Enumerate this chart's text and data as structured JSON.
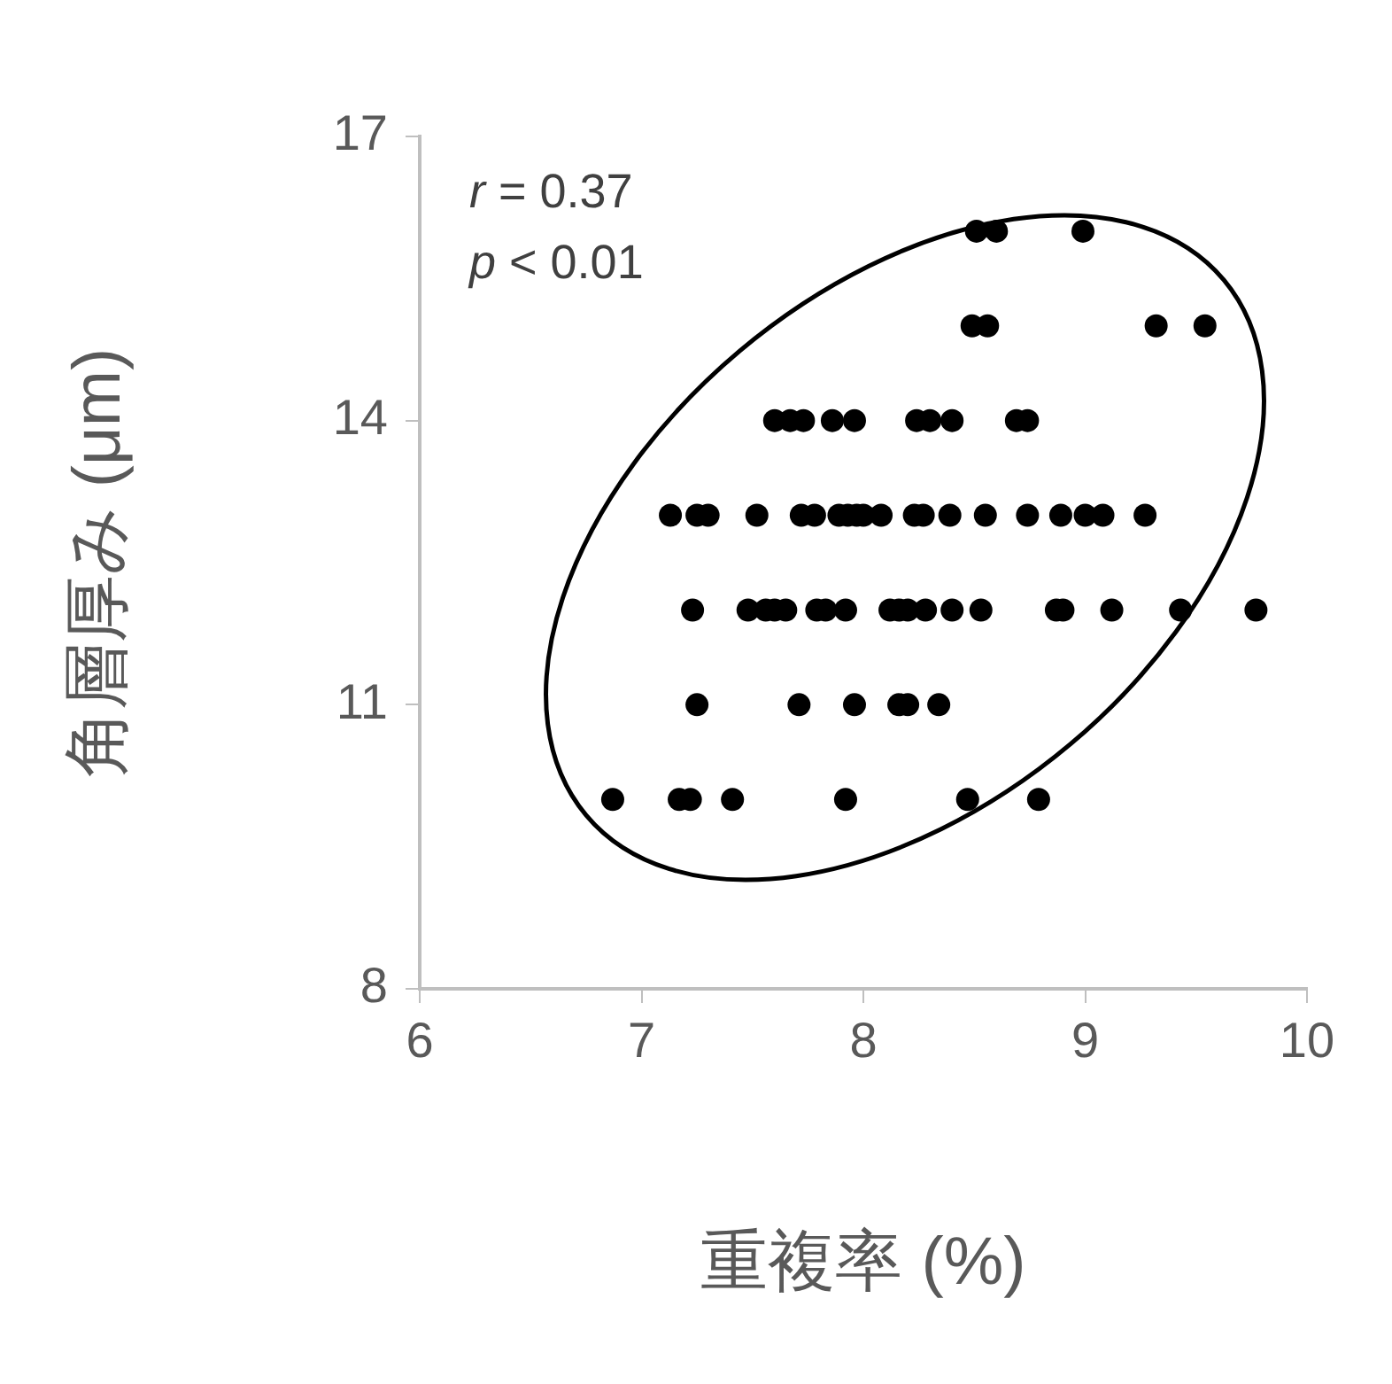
{
  "chart_data": {
    "type": "scatter",
    "xlabel": "重複率 (%)",
    "ylabel": "角層厚み (μm)",
    "annotations": [
      "r = 0.37",
      "p < 0.01"
    ],
    "xlim": [
      6,
      10
    ],
    "xticks": [
      6,
      7,
      8,
      9,
      10
    ],
    "ylim": [
      8,
      17
    ],
    "yticks": [
      8,
      11,
      14,
      17
    ],
    "grid": false,
    "legend": false,
    "marker": "circle",
    "series": [
      {
        "color": "#000000",
        "x": [
          8.51,
          8.6,
          8.99,
          8.49,
          8.56,
          9.32,
          9.54,
          7.6,
          7.67,
          7.73,
          7.86,
          7.96,
          8.24,
          8.3,
          8.4,
          8.69,
          8.74,
          7.13,
          7.25,
          7.3,
          7.52,
          7.72,
          7.78,
          7.89,
          7.93,
          7.97,
          8.0,
          8.08,
          8.23,
          8.27,
          8.39,
          8.55,
          8.74,
          8.89,
          9.0,
          9.08,
          9.27,
          7.23,
          7.48,
          7.56,
          7.6,
          7.65,
          7.79,
          7.83,
          7.92,
          8.12,
          8.16,
          8.2,
          8.28,
          8.4,
          8.53,
          8.87,
          8.9,
          9.12,
          9.43,
          9.77,
          7.25,
          7.71,
          7.96,
          8.16,
          8.2,
          8.34,
          6.87,
          7.17,
          7.22,
          7.41,
          7.92,
          8.47,
          8.79
        ],
        "values": [
          16,
          16,
          16,
          15,
          15,
          15,
          15,
          14,
          14,
          14,
          14,
          14,
          14,
          14,
          14,
          14,
          14,
          13,
          13,
          13,
          13,
          13,
          13,
          13,
          13,
          13,
          13,
          13,
          13,
          13,
          13,
          13,
          13,
          13,
          13,
          13,
          13,
          12,
          12,
          12,
          12,
          12,
          12,
          12,
          12,
          12,
          12,
          12,
          12,
          12,
          12,
          12,
          12,
          12,
          12,
          12,
          11,
          11,
          11,
          11,
          11,
          11,
          10,
          10,
          10,
          10,
          10,
          10,
          10
        ]
      }
    ]
  }
}
